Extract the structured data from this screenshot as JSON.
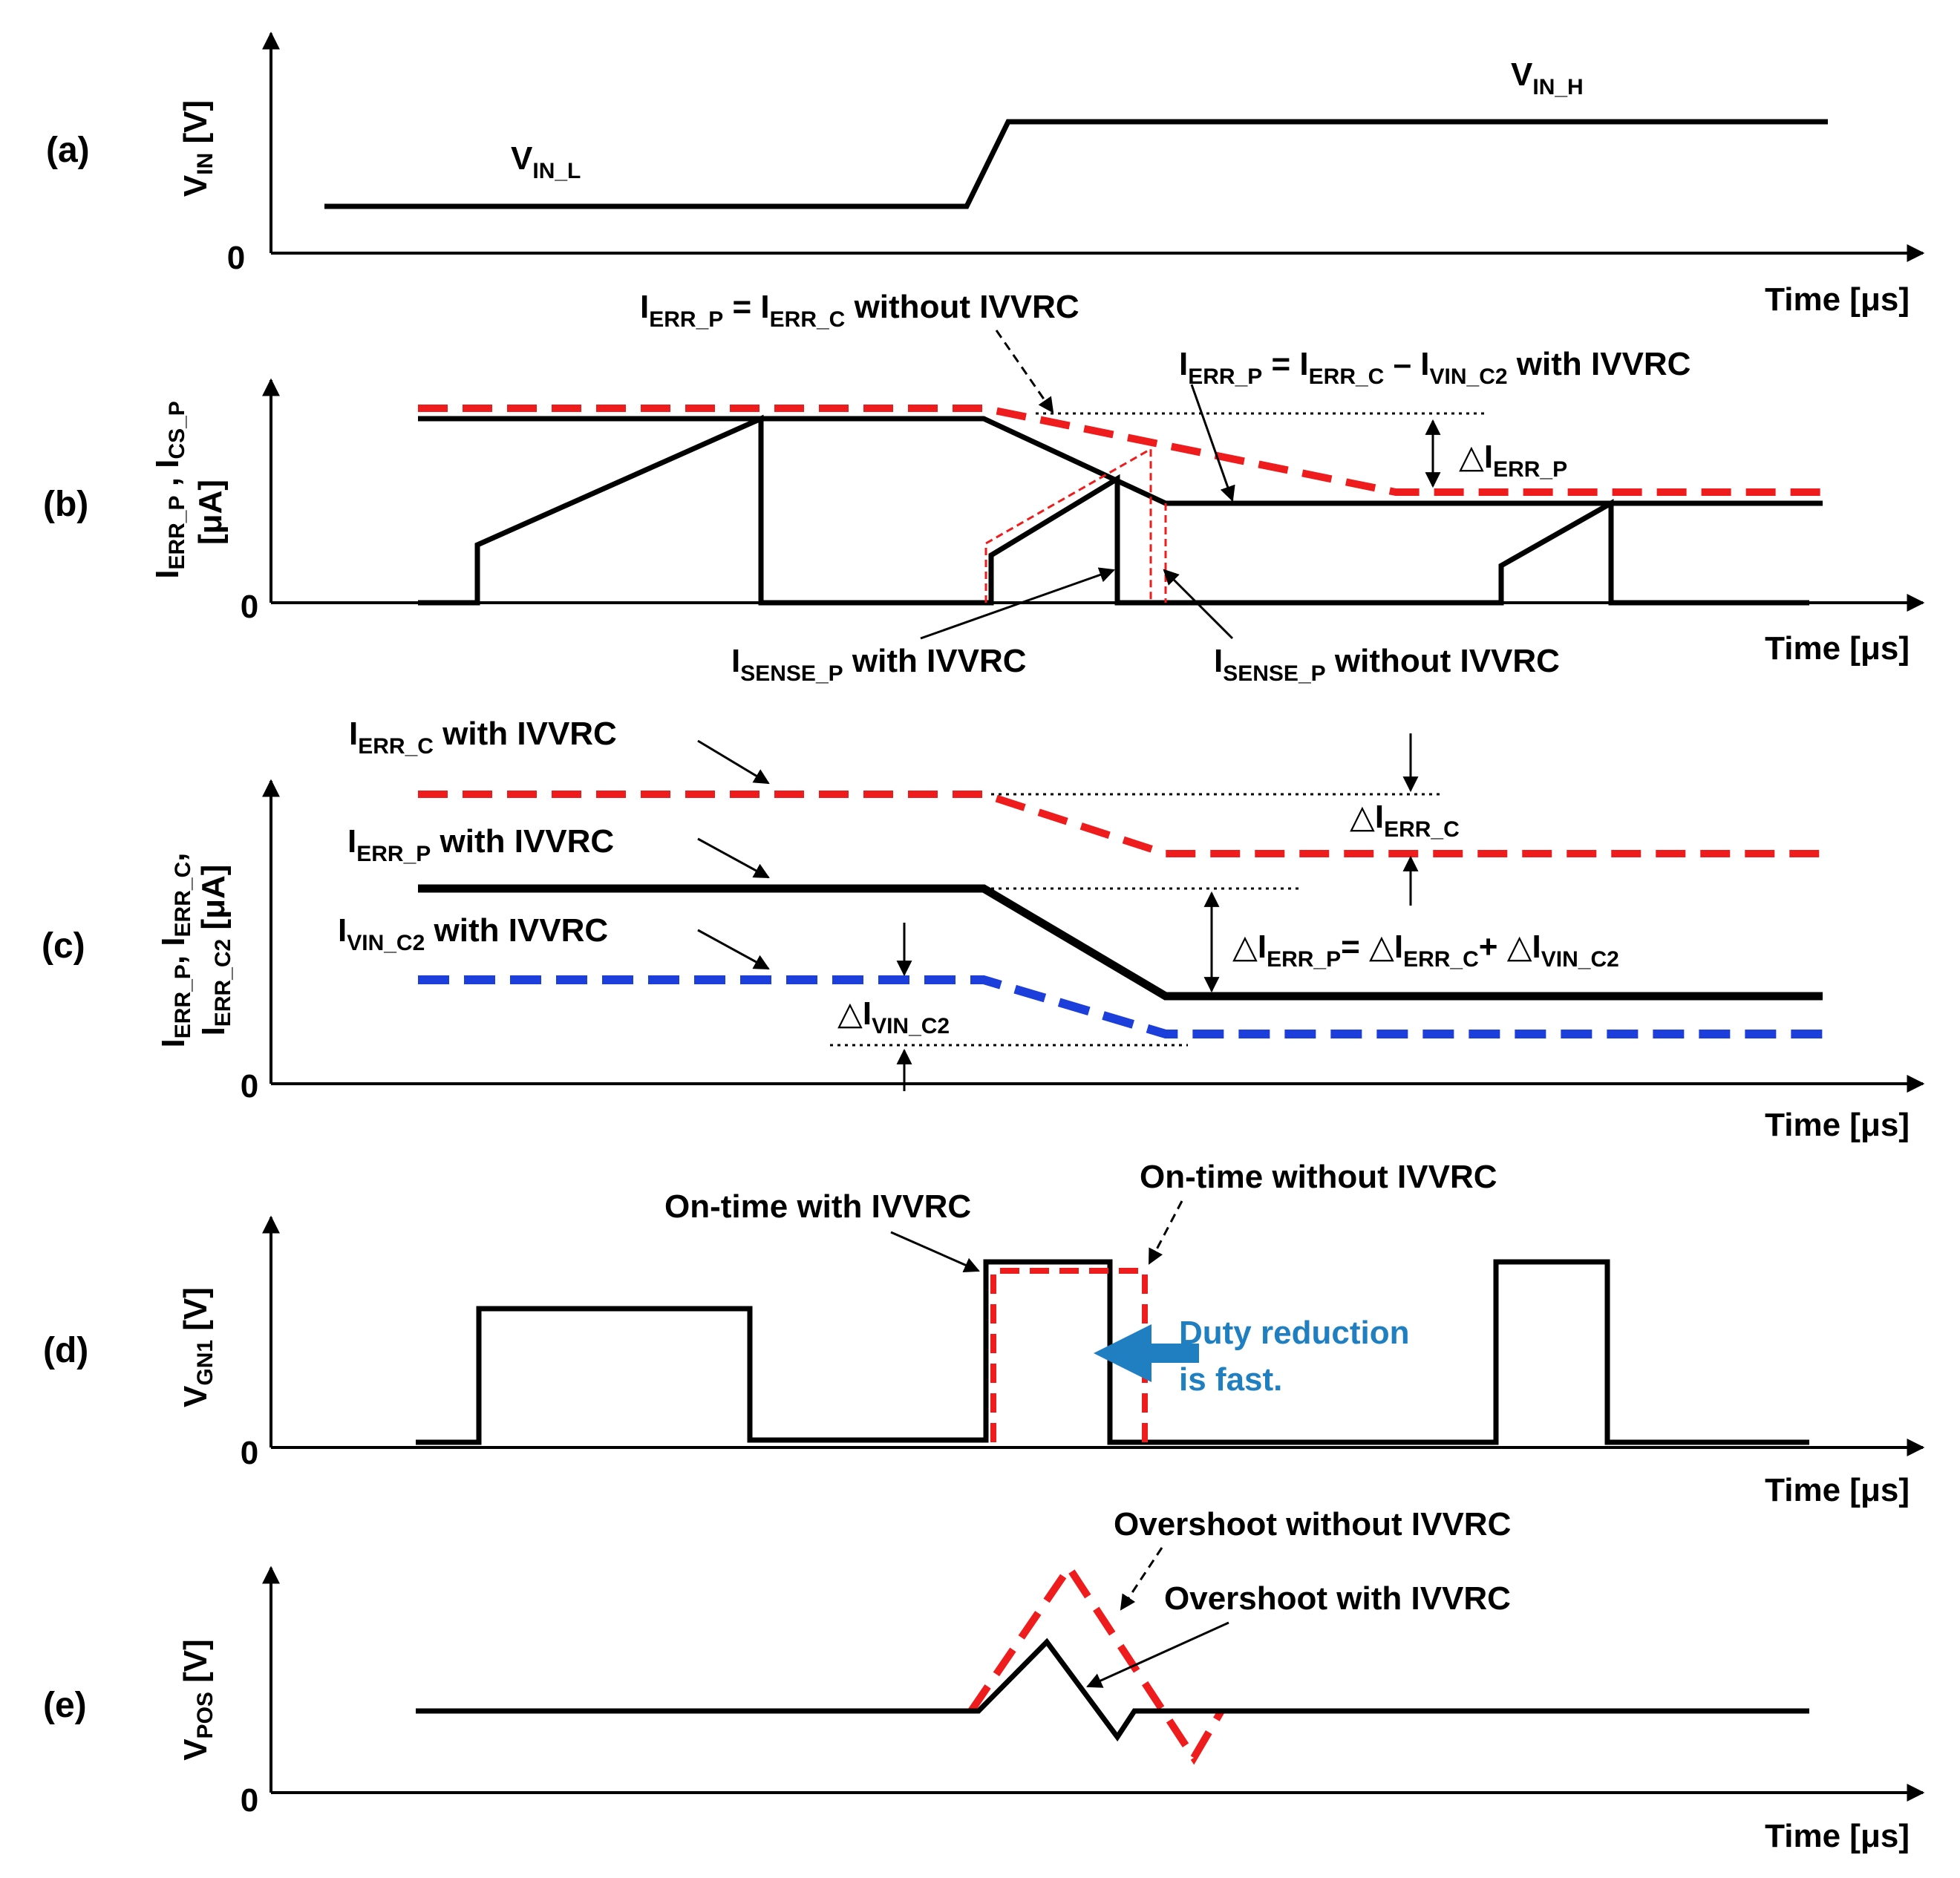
{
  "panels": {
    "a": {
      "tag": "(a)",
      "y_label": {
        "main": "V",
        "sub": "IN",
        "unit": " [V]"
      },
      "zero": "0",
      "x_label": "Time [μs]",
      "vin_l": {
        "main": "V",
        "sub": "IN_L"
      },
      "vin_h": {
        "main": "V",
        "sub": "IN_H"
      }
    },
    "b": {
      "tag": "(b)",
      "y_label_line1": {
        "m1": "I",
        "s1": "ERR_P",
        "sep": " , ",
        "m2": "I",
        "s2": "CS_P"
      },
      "y_label_line2": "[μA]",
      "zero": "0",
      "x_label": "Time [μs]",
      "ann_without": {
        "m1": "I",
        "s1": "ERR_P",
        "t1": " = I",
        "s2": "ERR_C",
        "t2": " without IVVRC"
      },
      "ann_with": {
        "m1": "I",
        "s1": "ERR_P",
        "t1": " = I",
        "s2": "ERR_C",
        "t2": " – I",
        "s3": "VIN_C2",
        "t3": " with IVVRC"
      },
      "delta": {
        "m": "△I",
        "s": "ERR_P"
      },
      "sense_with": {
        "m": "I",
        "s": "SENSE_P",
        "t": " with IVVRC"
      },
      "sense_without": {
        "m": "I",
        "s": "SENSE_P",
        "t": " without IVVRC"
      }
    },
    "c": {
      "tag": "(c)",
      "y_label_line1": {
        "m1": "I",
        "s1": "ERR_P",
        "sep": ", ",
        "m2": "I",
        "s2": "ERR_C",
        "end": ","
      },
      "y_label_line2": {
        "m": "I",
        "s": "ERR_C2",
        "unit": " [μA]"
      },
      "zero": "0",
      "x_label": "Time [μs]",
      "ierr_c": {
        "m": "I",
        "s": "ERR_C",
        "t": " with IVVRC"
      },
      "ierr_p": {
        "m": "I",
        "s": "ERR_P",
        "t": " with IVVRC"
      },
      "ivin_c2": {
        "m": "I",
        "s": "VIN_C2",
        "t": " with IVVRC"
      },
      "delta_c": {
        "m": "△I",
        "s": "ERR_C"
      },
      "delta_vin": {
        "m": "△I",
        "s": "VIN_C2"
      },
      "delta_eq": {
        "m1": "△I",
        "s1": "ERR_P",
        "t1": "= △I",
        "s2": "ERR_C",
        "t2": "+ △I",
        "s3": "VIN_C2"
      }
    },
    "d": {
      "tag": "(d)",
      "y_label": {
        "main": "V",
        "sub": "GN1",
        "unit": " [V]"
      },
      "zero": "0",
      "x_label": "Time [μs]",
      "on_with": "On-time with IVVRC",
      "on_without": "On-time without IVVRC",
      "duty_line1": "Duty reduction",
      "duty_line2": "is fast."
    },
    "e": {
      "tag": "(e)",
      "y_label": {
        "main": "V",
        "sub": "POS",
        "unit": " [V]"
      },
      "zero": "0",
      "x_label": "Time [μs]",
      "over_without": "Overshoot without IVVRC",
      "over_with": "Overshoot with IVVRC"
    }
  },
  "colors": {
    "red": "#ee1c1c",
    "blue_line": "#1c3fdb",
    "blue_text": "#1f7fc1",
    "black": "#000000"
  }
}
